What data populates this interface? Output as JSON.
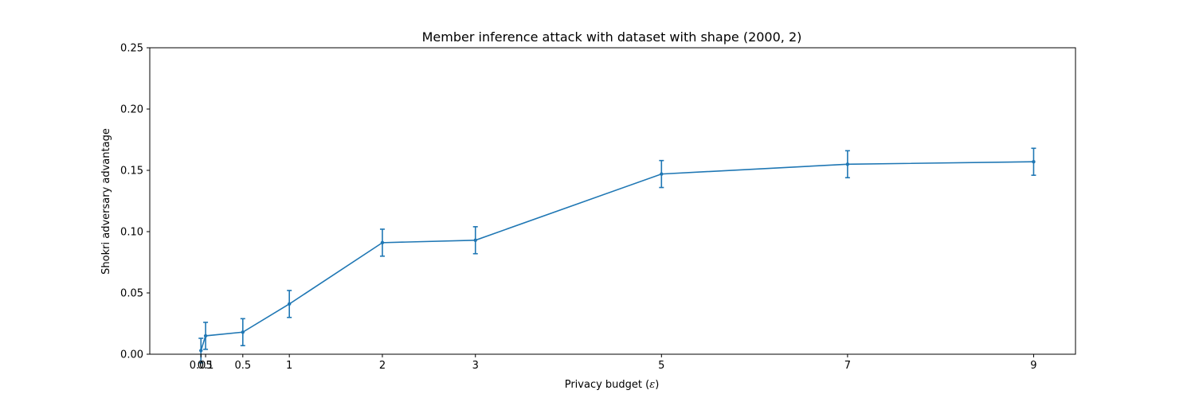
{
  "chart_data": {
    "type": "line",
    "title": "Member inference attack with dataset with shape (2000, 2)",
    "xlabel_prefix": "Privacy budget (",
    "xlabel_symbol": "ε",
    "xlabel_suffix": ")",
    "ylabel": "Shokri adversary advantage",
    "xlim": [
      -0.5,
      9.45
    ],
    "ylim": [
      0,
      0.25
    ],
    "xticks": [
      {
        "value": 0.05,
        "label": "0.05"
      },
      {
        "value": 0.1,
        "label": "0.1"
      },
      {
        "value": 0.5,
        "label": "0.5"
      },
      {
        "value": 1,
        "label": "1"
      },
      {
        "value": 2,
        "label": "2"
      },
      {
        "value": 3,
        "label": "3"
      },
      {
        "value": 5,
        "label": "5"
      },
      {
        "value": 7,
        "label": "7"
      },
      {
        "value": 9,
        "label": "9"
      }
    ],
    "yticks": [
      {
        "value": 0.0,
        "label": "0.00"
      },
      {
        "value": 0.05,
        "label": "0.05"
      },
      {
        "value": 0.1,
        "label": "0.10"
      },
      {
        "value": 0.15,
        "label": "0.15"
      },
      {
        "value": 0.2,
        "label": "0.20"
      },
      {
        "value": 0.25,
        "label": "0.25"
      }
    ],
    "grid": false,
    "legend": "none",
    "series": [
      {
        "color": "#1f77b4",
        "points": [
          {
            "x": 0.05,
            "y": 0.003,
            "err": 0.01
          },
          {
            "x": 0.1,
            "y": 0.015,
            "err": 0.011
          },
          {
            "x": 0.5,
            "y": 0.018,
            "err": 0.011
          },
          {
            "x": 1,
            "y": 0.041,
            "err": 0.011
          },
          {
            "x": 2,
            "y": 0.091,
            "err": 0.011
          },
          {
            "x": 3,
            "y": 0.093,
            "err": 0.011
          },
          {
            "x": 5,
            "y": 0.147,
            "err": 0.011
          },
          {
            "x": 7,
            "y": 0.155,
            "err": 0.011
          },
          {
            "x": 9,
            "y": 0.157,
            "err": 0.011
          }
        ]
      }
    ]
  }
}
